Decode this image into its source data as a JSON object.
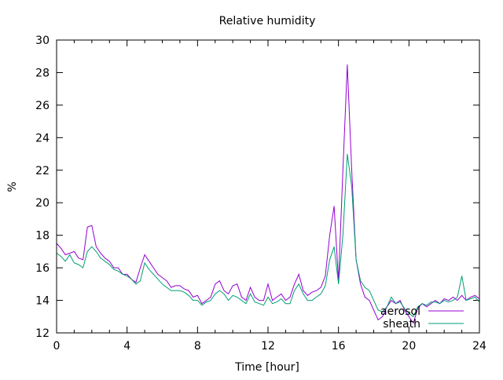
{
  "chart_data": {
    "type": "line",
    "title": "Relative humidity",
    "xlabel": "Time [hour]",
    "ylabel": "%",
    "xlim": [
      0,
      24
    ],
    "ylim": [
      12,
      30
    ],
    "xticks": [
      0,
      4,
      8,
      12,
      16,
      20,
      24
    ],
    "xtick_labels": [
      "0",
      "4",
      "8",
      "12",
      "16",
      "20",
      "24"
    ],
    "yticks": [
      12,
      14,
      16,
      18,
      20,
      22,
      24,
      26,
      28,
      30
    ],
    "ytick_labels": [
      "12",
      "14",
      "16",
      "18",
      "20",
      "22",
      "24",
      "26",
      "28",
      "30"
    ],
    "grid": false,
    "legend_position": "bottom-right",
    "x": [
      0,
      0.25,
      0.5,
      0.75,
      1,
      1.25,
      1.5,
      1.75,
      2,
      2.25,
      2.5,
      2.75,
      3,
      3.25,
      3.5,
      3.75,
      4,
      4.25,
      4.5,
      4.75,
      5,
      5.25,
      5.5,
      5.75,
      6,
      6.25,
      6.5,
      6.75,
      7,
      7.25,
      7.5,
      7.75,
      8,
      8.25,
      8.5,
      8.75,
      9,
      9.25,
      9.5,
      9.75,
      10,
      10.25,
      10.5,
      10.75,
      11,
      11.25,
      11.5,
      11.75,
      12,
      12.25,
      12.5,
      12.75,
      13,
      13.25,
      13.5,
      13.75,
      14,
      14.25,
      14.5,
      14.75,
      15,
      15.25,
      15.5,
      15.75,
      16,
      16.25,
      16.5,
      16.75,
      17,
      17.25,
      17.5,
      17.75,
      18,
      18.25,
      18.5,
      18.75,
      19,
      19.25,
      19.5,
      19.75,
      20,
      20.25,
      20.5,
      20.75,
      21,
      21.25,
      21.5,
      21.75,
      22,
      22.25,
      22.5,
      22.75,
      23,
      23.25,
      23.5,
      23.75,
      24
    ],
    "series": [
      {
        "name": "aerosol",
        "color": "#9400d3",
        "values": [
          17.5,
          17.2,
          16.8,
          16.9,
          17.0,
          16.6,
          16.5,
          18.5,
          18.6,
          17.3,
          16.9,
          16.6,
          16.4,
          16.0,
          16.0,
          15.6,
          15.6,
          15.3,
          15.1,
          16.0,
          16.8,
          16.4,
          16.0,
          15.6,
          15.4,
          15.2,
          14.8,
          14.9,
          14.9,
          14.7,
          14.6,
          14.2,
          14.3,
          13.8,
          14.0,
          14.2,
          15.0,
          15.2,
          14.6,
          14.4,
          14.9,
          15.0,
          14.2,
          14.0,
          14.8,
          14.2,
          14.0,
          14.0,
          15.0,
          14.0,
          14.2,
          14.4,
          14.0,
          14.2,
          15.0,
          15.6,
          14.6,
          14.3,
          14.5,
          14.6,
          14.8,
          15.5,
          18.0,
          19.8,
          15.2,
          22.0,
          28.5,
          22.0,
          16.5,
          15.0,
          14.2,
          14.0,
          13.4,
          12.8,
          13.0,
          13.6,
          14.0,
          13.8,
          14.0,
          13.4,
          13.0,
          12.6,
          13.5,
          13.8,
          13.6,
          13.8,
          14.0,
          13.8,
          14.1,
          14.0,
          14.2,
          14.0,
          14.3,
          14.0,
          14.2,
          14.3,
          14.1
        ]
      },
      {
        "name": "sheath",
        "color": "#009e73",
        "values": [
          16.9,
          16.7,
          16.4,
          16.8,
          16.3,
          16.2,
          16.0,
          17.0,
          17.3,
          17.0,
          16.6,
          16.4,
          16.2,
          15.9,
          15.8,
          15.6,
          15.5,
          15.3,
          15.0,
          15.2,
          16.3,
          15.9,
          15.6,
          15.3,
          15.0,
          14.8,
          14.6,
          14.6,
          14.6,
          14.5,
          14.3,
          14.0,
          14.0,
          13.7,
          13.9,
          14.0,
          14.4,
          14.6,
          14.4,
          14.0,
          14.3,
          14.2,
          14.0,
          13.8,
          14.4,
          13.9,
          13.8,
          13.7,
          14.2,
          13.8,
          13.9,
          14.1,
          13.8,
          13.8,
          14.6,
          15.0,
          14.4,
          14.0,
          14.0,
          14.2,
          14.4,
          14.9,
          16.5,
          17.3,
          15.0,
          18.0,
          23.0,
          21.0,
          16.5,
          15.2,
          14.8,
          14.6,
          14.0,
          13.4,
          13.3,
          13.6,
          14.2,
          13.8,
          13.9,
          13.5,
          13.2,
          13.0,
          13.6,
          13.8,
          13.7,
          13.9,
          13.9,
          13.8,
          14.0,
          13.9,
          14.0,
          14.2,
          15.5,
          14.0,
          14.1,
          14.2,
          13.9
        ]
      }
    ]
  }
}
